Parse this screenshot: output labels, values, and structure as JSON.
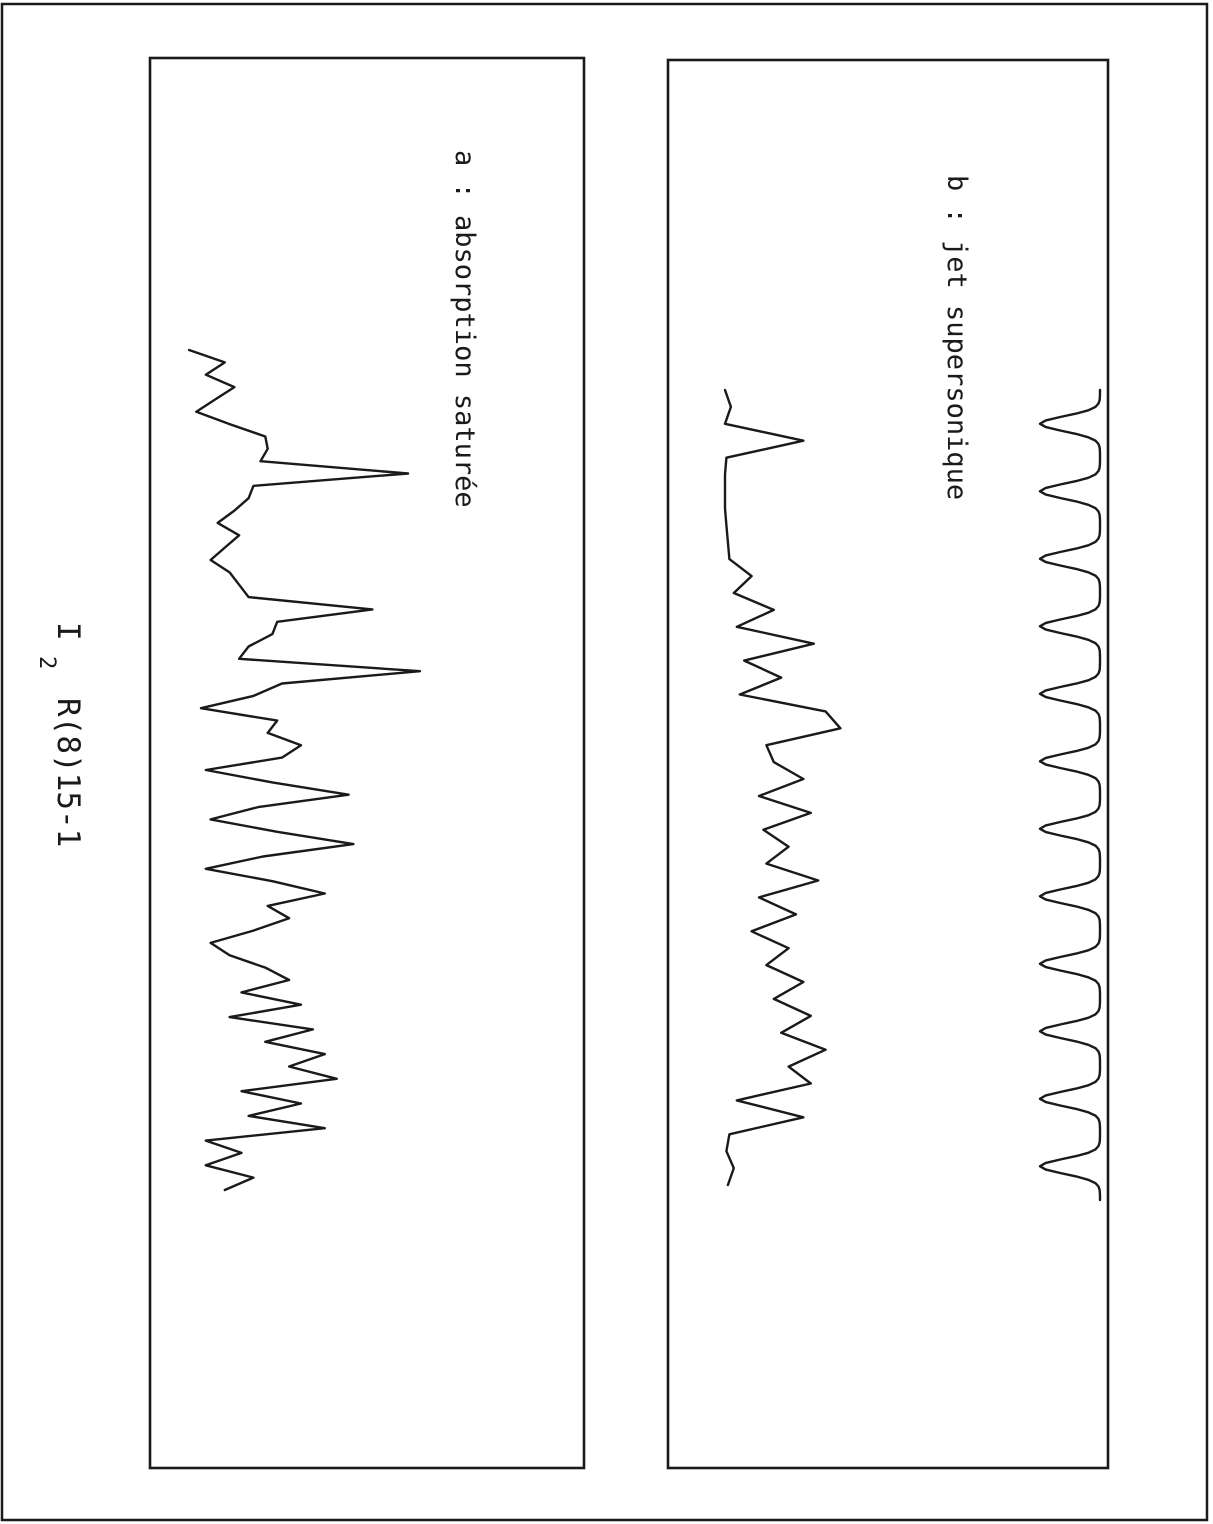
{
  "caption": {
    "molecule": "I",
    "subscript": "2",
    "transition": "R(8)15-1"
  },
  "panels": {
    "a": {
      "label": "a : absorption saturée"
    },
    "b": {
      "label": "b : jet supersonique"
    }
  },
  "chart_data": [
    {
      "type": "line",
      "panel": "a",
      "title": "a : absorption saturée",
      "xlabel": "",
      "ylabel": "",
      "orientation": "rotated 90°",
      "series": [
        {
          "name": "",
          "values": [
            0.03,
            0.18,
            0.1,
            0.22,
            0.14,
            0.06,
            0.2,
            0.35,
            0.36,
            0.33,
            0.95,
            0.3,
            0.28,
            0.22,
            0.15,
            0.24,
            0.18,
            0.12,
            0.2,
            0.24,
            0.28,
            0.8,
            0.4,
            0.38,
            0.28,
            0.24,
            1.0,
            0.42,
            0.3,
            0.08,
            0.4,
            0.36,
            0.5,
            0.42,
            0.1,
            0.38,
            0.7,
            0.32,
            0.12,
            0.4,
            0.72,
            0.34,
            0.1,
            0.38,
            0.6,
            0.36,
            0.45,
            0.3,
            0.12,
            0.2,
            0.35,
            0.45,
            0.25,
            0.5,
            0.2,
            0.55,
            0.35,
            0.6,
            0.45,
            0.65,
            0.25,
            0.5,
            0.28,
            0.6,
            0.1,
            0.25,
            0.1,
            0.3,
            0.18
          ]
        }
      ]
    },
    {
      "type": "line",
      "panel": "b",
      "title": "b : jet supersonique",
      "xlabel": "",
      "ylabel": "",
      "orientation": "rotated 90°",
      "series": [
        {
          "name": "",
          "values": [
            0.02,
            0.06,
            0.02,
            0.55,
            0.03,
            0.02,
            0.02,
            0.02,
            0.03,
            0.04,
            0.05,
            0.2,
            0.08,
            0.35,
            0.1,
            0.62,
            0.15,
            0.4,
            0.12,
            0.7,
            0.8,
            0.3,
            0.35,
            0.55,
            0.25,
            0.6,
            0.28,
            0.45,
            0.3,
            0.65,
            0.25,
            0.5,
            0.2,
            0.45,
            0.3,
            0.55,
            0.35,
            0.6,
            0.4,
            0.7,
            0.45,
            0.6,
            0.1,
            0.55,
            0.05,
            0.03,
            0.08,
            0.04
          ]
        },
        {
          "name": "",
          "values": [
            1,
            1,
            1,
            1,
            1,
            1,
            1,
            1,
            1,
            1,
            1,
            1
          ]
        }
      ]
    }
  ]
}
